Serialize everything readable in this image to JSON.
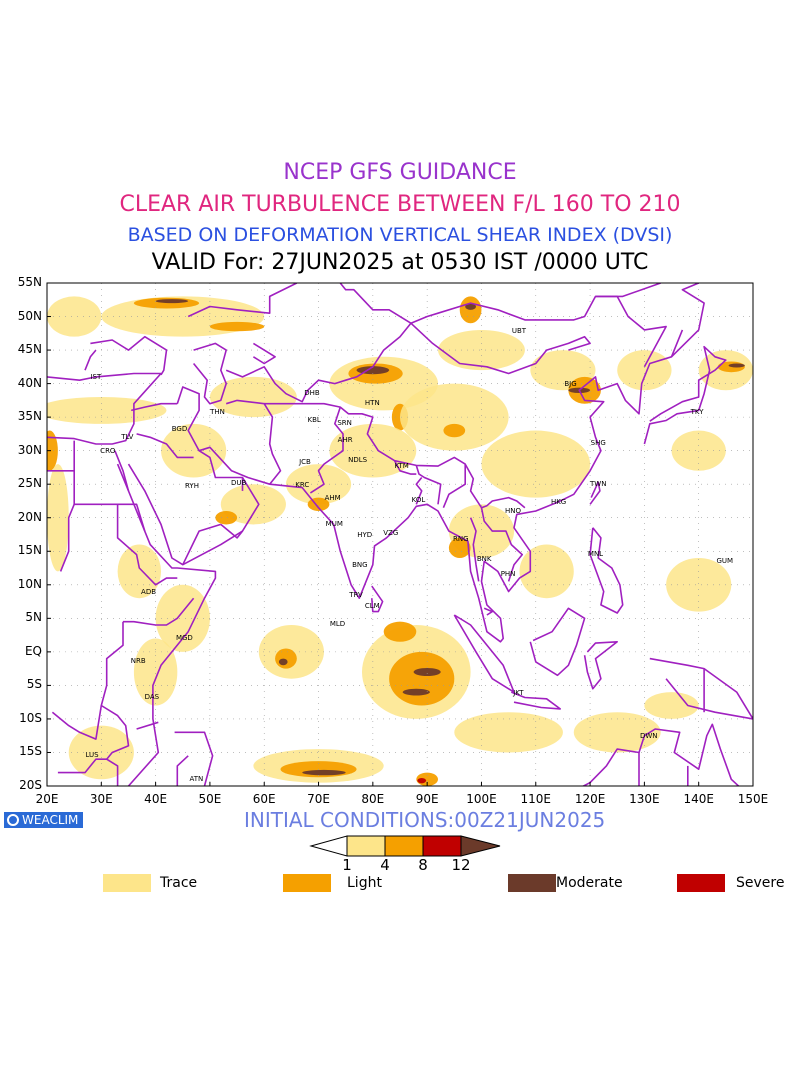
{
  "titles": {
    "line1": "NCEP GFS GUIDANCE",
    "line2": "CLEAR AIR TURBULENCE BETWEEN F/L 160 TO 210",
    "line3": "BASED ON DEFORMATION VERTICAL SHEAR INDEX (DVSI)",
    "line4": "VALID For: 27JUN2025 at 0530 IST /0000 UTC"
  },
  "colors": {
    "line1": "#9933cc",
    "line2": "#e0267f",
    "line3": "#2b50e0",
    "line4": "#000000",
    "coast": "#a020c0",
    "trace": "#fde58a",
    "light": "#f5a000",
    "moderate": "#6b3a2a",
    "severe": "#c00000"
  },
  "lat_labels": [
    "55N",
    "50N",
    "45N",
    "40N",
    "35N",
    "30N",
    "25N",
    "20N",
    "15N",
    "10N",
    "5N",
    "EQ",
    "5S",
    "10S",
    "15S",
    "20S"
  ],
  "lon_labels": [
    "20E",
    "30E",
    "40E",
    "50E",
    "60E",
    "70E",
    "80E",
    "90E",
    "100E",
    "110E",
    "120E",
    "130E",
    "140E",
    "150E"
  ],
  "cities": [
    {
      "code": "IST",
      "lon": 29,
      "lat": 41
    },
    {
      "code": "BGD",
      "lon": 44.4,
      "lat": 33.3
    },
    {
      "code": "THN",
      "lon": 51.4,
      "lat": 35.7
    },
    {
      "code": "DHB",
      "lon": 68.8,
      "lat": 38.6
    },
    {
      "code": "KBL",
      "lon": 69.2,
      "lat": 34.5
    },
    {
      "code": "SRN",
      "lon": 74.8,
      "lat": 34.1
    },
    {
      "code": "AHR",
      "lon": 74.9,
      "lat": 31.6
    },
    {
      "code": "HTN",
      "lon": 79.9,
      "lat": 37.1
    },
    {
      "code": "JCB",
      "lon": 67.5,
      "lat": 28.3
    },
    {
      "code": "NDLS",
      "lon": 77.2,
      "lat": 28.6
    },
    {
      "code": "KTM",
      "lon": 85.3,
      "lat": 27.7
    },
    {
      "code": "KRC",
      "lon": 67,
      "lat": 24.9
    },
    {
      "code": "AHM",
      "lon": 72.6,
      "lat": 23
    },
    {
      "code": "KOL",
      "lon": 88.4,
      "lat": 22.6
    },
    {
      "code": "MUM",
      "lon": 72.9,
      "lat": 19.1
    },
    {
      "code": "HYD",
      "lon": 78.5,
      "lat": 17.4
    },
    {
      "code": "VZG",
      "lon": 83.3,
      "lat": 17.7
    },
    {
      "code": "RNG",
      "lon": 96.2,
      "lat": 16.8
    },
    {
      "code": "BNG",
      "lon": 77.6,
      "lat": 12.9
    },
    {
      "code": "TRV",
      "lon": 76.9,
      "lat": 8.5
    },
    {
      "code": "CLM",
      "lon": 79.9,
      "lat": 6.9
    },
    {
      "code": "MLD",
      "lon": 73.5,
      "lat": 4.2
    },
    {
      "code": "RYH",
      "lon": 46.7,
      "lat": 24.7
    },
    {
      "code": "DUB",
      "lon": 55.3,
      "lat": 25.2
    },
    {
      "code": "CRO",
      "lon": 31.2,
      "lat": 30
    },
    {
      "code": "TLV",
      "lon": 34.8,
      "lat": 32
    },
    {
      "code": "ADB",
      "lon": 38.7,
      "lat": 9
    },
    {
      "code": "MGD",
      "lon": 45.3,
      "lat": 2
    },
    {
      "code": "NRB",
      "lon": 36.8,
      "lat": -1.3
    },
    {
      "code": "DAS",
      "lon": 39.3,
      "lat": -6.8
    },
    {
      "code": "LUS",
      "lon": 28.3,
      "lat": -15.4
    },
    {
      "code": "ATN",
      "lon": 47.5,
      "lat": -19
    },
    {
      "code": "UBT",
      "lon": 106.9,
      "lat": 47.9
    },
    {
      "code": "BJG",
      "lon": 116.4,
      "lat": 39.9
    },
    {
      "code": "TKY",
      "lon": 139.7,
      "lat": 35.7
    },
    {
      "code": "SHG",
      "lon": 121.5,
      "lat": 31.2
    },
    {
      "code": "TWN",
      "lon": 121.5,
      "lat": 25
    },
    {
      "code": "HKG",
      "lon": 114.2,
      "lat": 22.3
    },
    {
      "code": "HNO",
      "lon": 105.8,
      "lat": 21
    },
    {
      "code": "BNK",
      "lon": 100.5,
      "lat": 13.8
    },
    {
      "code": "PHN",
      "lon": 104.9,
      "lat": 11.6
    },
    {
      "code": "MNL",
      "lon": 121,
      "lat": 14.6
    },
    {
      "code": "GUM",
      "lon": 144.8,
      "lat": 13.5
    },
    {
      "code": "JKT",
      "lon": 106.8,
      "lat": -6.2
    },
    {
      "code": "DWN",
      "lon": 130.8,
      "lat": -12.5
    }
  ],
  "footer": {
    "logo_text": "WEACLIM",
    "initial_conditions": "INITIAL CONDITIONS:00Z21JUN2025"
  },
  "colorbar": {
    "ticks": [
      "1",
      "4",
      "8",
      "12"
    ],
    "segments": [
      "#fde58a",
      "#f5a000",
      "#c00000"
    ]
  },
  "legend": [
    {
      "label": "Trace",
      "color": "#fde58a"
    },
    {
      "label": "Light",
      "color": "#f5a000"
    },
    {
      "label": "Moderate",
      "color": "#6b3a2a"
    },
    {
      "label": "Severe",
      "color": "#c00000"
    }
  ],
  "turbulence_patches": [
    {
      "level": "trace",
      "lon": 25,
      "lat": 50,
      "rx": 5,
      "ry": 3
    },
    {
      "level": "trace",
      "lon": 45,
      "lat": 50,
      "rx": 15,
      "ry": 3
    },
    {
      "level": "light",
      "lon": 42,
      "lat": 52,
      "rx": 6,
      "ry": 0.8
    },
    {
      "level": "moderate",
      "lon": 43,
      "lat": 52.3,
      "rx": 3,
      "ry": 0.3
    },
    {
      "level": "light",
      "lon": 55,
      "lat": 48.5,
      "rx": 5,
      "ry": 0.7
    },
    {
      "level": "trace",
      "lon": 30,
      "lat": 36,
      "rx": 12,
      "ry": 2
    },
    {
      "level": "light",
      "lon": 20.5,
      "lat": 30,
      "rx": 1.5,
      "ry": 3
    },
    {
      "level": "trace",
      "lon": 22,
      "lat": 20,
      "rx": 2,
      "ry": 8
    },
    {
      "level": "trace",
      "lon": 58,
      "lat": 38,
      "rx": 8,
      "ry": 3
    },
    {
      "level": "trace",
      "lon": 47,
      "lat": 30,
      "rx": 6,
      "ry": 4
    },
    {
      "level": "trace",
      "lon": 58,
      "lat": 22,
      "rx": 6,
      "ry": 3
    },
    {
      "level": "light",
      "lon": 53,
      "lat": 20,
      "rx": 2,
      "ry": 1
    },
    {
      "level": "trace",
      "lon": 70,
      "lat": 25,
      "rx": 6,
      "ry": 3
    },
    {
      "level": "light",
      "lon": 70,
      "lat": 22,
      "rx": 2,
      "ry": 1
    },
    {
      "level": "trace",
      "lon": 82,
      "lat": 40,
      "rx": 10,
      "ry": 4
    },
    {
      "level": "light",
      "lon": 80.5,
      "lat": 41.5,
      "rx": 5,
      "ry": 1.5
    },
    {
      "level": "moderate",
      "lon": 80,
      "lat": 42,
      "rx": 3,
      "ry": 0.6
    },
    {
      "level": "light",
      "lon": 85,
      "lat": 35,
      "rx": 1.5,
      "ry": 2
    },
    {
      "level": "trace",
      "lon": 80,
      "lat": 30,
      "rx": 8,
      "ry": 4
    },
    {
      "level": "trace",
      "lon": 95,
      "lat": 35,
      "rx": 10,
      "ry": 5
    },
    {
      "level": "light",
      "lon": 95,
      "lat": 33,
      "rx": 2,
      "ry": 1
    },
    {
      "level": "trace",
      "lon": 100,
      "lat": 45,
      "rx": 8,
      "ry": 3
    },
    {
      "level": "light",
      "lon": 98,
      "lat": 51,
      "rx": 2,
      "ry": 2
    },
    {
      "level": "moderate",
      "lon": 98,
      "lat": 51.5,
      "rx": 1,
      "ry": 0.5
    },
    {
      "level": "trace",
      "lon": 115,
      "lat": 42,
      "rx": 6,
      "ry": 3
    },
    {
      "level": "light",
      "lon": 119,
      "lat": 39,
      "rx": 3,
      "ry": 2
    },
    {
      "level": "moderate",
      "lon": 118,
      "lat": 39,
      "rx": 2,
      "ry": 0.4
    },
    {
      "level": "trace",
      "lon": 110,
      "lat": 28,
      "rx": 10,
      "ry": 5
    },
    {
      "level": "trace",
      "lon": 130,
      "lat": 42,
      "rx": 5,
      "ry": 3
    },
    {
      "level": "trace",
      "lon": 145,
      "lat": 42,
      "rx": 5,
      "ry": 3
    },
    {
      "level": "light",
      "lon": 146,
      "lat": 42.5,
      "rx": 2.5,
      "ry": 0.8
    },
    {
      "level": "moderate",
      "lon": 147,
      "lat": 42.7,
      "rx": 1.5,
      "ry": 0.3
    },
    {
      "level": "trace",
      "lon": 140,
      "lat": 30,
      "rx": 5,
      "ry": 3
    },
    {
      "level": "trace",
      "lon": 140,
      "lat": 10,
      "rx": 6,
      "ry": 4
    },
    {
      "level": "trace",
      "lon": 100,
      "lat": 18,
      "rx": 6,
      "ry": 4
    },
    {
      "level": "light",
      "lon": 96,
      "lat": 15.5,
      "rx": 2,
      "ry": 1.5
    },
    {
      "level": "trace",
      "lon": 112,
      "lat": 12,
      "rx": 5,
      "ry": 4
    },
    {
      "level": "trace",
      "lon": 65,
      "lat": 0,
      "rx": 6,
      "ry": 4
    },
    {
      "level": "light",
      "lon": 64,
      "lat": -1,
      "rx": 2,
      "ry": 1.5
    },
    {
      "level": "moderate",
      "lon": 63.5,
      "lat": -1.5,
      "rx": 0.8,
      "ry": 0.5
    },
    {
      "level": "trace",
      "lon": 45,
      "lat": 5,
      "rx": 5,
      "ry": 5
    },
    {
      "level": "trace",
      "lon": 37,
      "lat": 12,
      "rx": 4,
      "ry": 4
    },
    {
      "level": "trace",
      "lon": 40,
      "lat": -3,
      "rx": 4,
      "ry": 5
    },
    {
      "level": "trace",
      "lon": 88,
      "lat": -3,
      "rx": 10,
      "ry": 7
    },
    {
      "level": "light",
      "lon": 89,
      "lat": -4,
      "rx": 6,
      "ry": 4
    },
    {
      "level": "moderate",
      "lon": 90,
      "lat": -3,
      "rx": 2.5,
      "ry": 0.6
    },
    {
      "level": "moderate",
      "lon": 88,
      "lat": -6,
      "rx": 2.5,
      "ry": 0.5
    },
    {
      "level": "light",
      "lon": 85,
      "lat": 3,
      "rx": 3,
      "ry": 1.5
    },
    {
      "level": "trace",
      "lon": 105,
      "lat": -12,
      "rx": 10,
      "ry": 3
    },
    {
      "level": "trace",
      "lon": 70,
      "lat": -17,
      "rx": 12,
      "ry": 2.5
    },
    {
      "level": "light",
      "lon": 70,
      "lat": -17.5,
      "rx": 7,
      "ry": 1.2
    },
    {
      "level": "moderate",
      "lon": 71,
      "lat": -18,
      "rx": 4,
      "ry": 0.4
    },
    {
      "level": "trace",
      "lon": 30,
      "lat": -15,
      "rx": 6,
      "ry": 4
    },
    {
      "level": "trace",
      "lon": 125,
      "lat": -12,
      "rx": 8,
      "ry": 3
    },
    {
      "level": "trace",
      "lon": 135,
      "lat": -8,
      "rx": 5,
      "ry": 2
    },
    {
      "level": "light",
      "lon": 90,
      "lat": -19,
      "rx": 2,
      "ry": 1
    },
    {
      "level": "severe",
      "lon": 89,
      "lat": -19.2,
      "rx": 0.8,
      "ry": 0.4
    }
  ]
}
